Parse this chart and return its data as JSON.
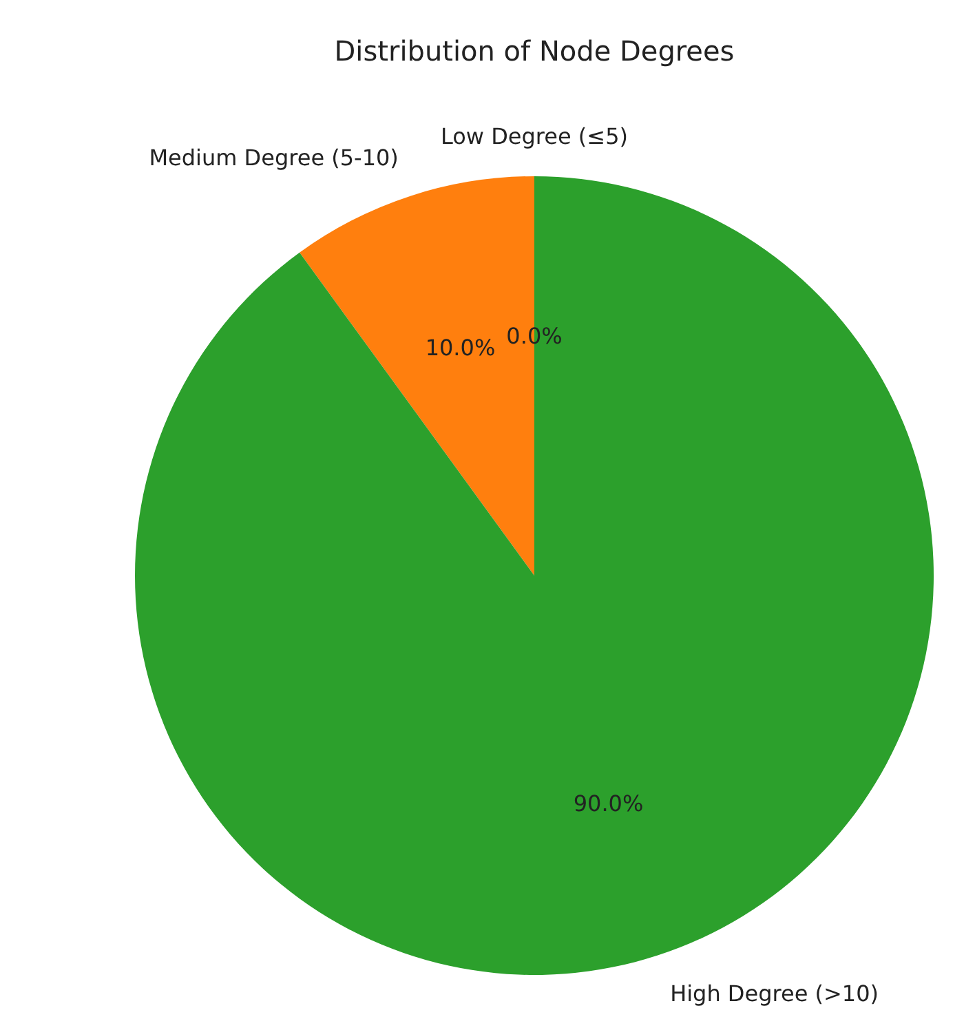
{
  "chart_data": {
    "type": "pie",
    "title": "Distribution of Node Degrees",
    "categories": [
      "Low Degree (≤5)",
      "Medium Degree (5-10)",
      "High Degree (>10)"
    ],
    "values": [
      0,
      10,
      90
    ],
    "colors": [
      "#1f77b4",
      "#ff7f0e",
      "#2ca02c"
    ],
    "value_labels": [
      "0.0%",
      "10.0%",
      "90.0%"
    ],
    "legend": false
  }
}
